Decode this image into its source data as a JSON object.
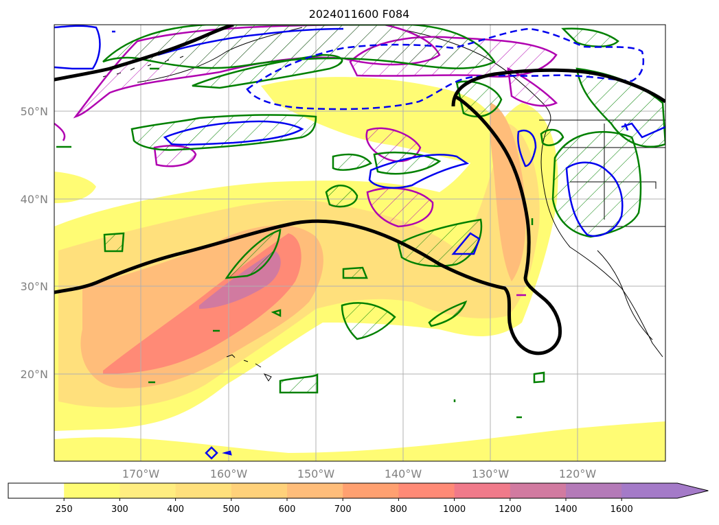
{
  "title": "2024011600 F084",
  "map": {
    "lat_labels": [
      "50°N",
      "40°N",
      "30°N",
      "20°N"
    ],
    "lon_labels": [
      "170°W",
      "160°W",
      "150°W",
      "140°W",
      "130°W",
      "120°W"
    ],
    "gridlines": true
  },
  "colorbar": {
    "ticks": [
      "250",
      "300",
      "400",
      "500",
      "600",
      "700",
      "800",
      "1000",
      "1200",
      "1400",
      "1600"
    ],
    "colors": [
      "#ffffff",
      "#fffc74",
      "#ffed80",
      "#ffe07c",
      "#ffd17a",
      "#ffbd7a",
      "#ffa070",
      "#ff8a76",
      "#f07a8a",
      "#d17aa0",
      "#b47ab8",
      "#a47ac8"
    ],
    "extend": "max"
  },
  "overlay_colors": {
    "thick_contour": "#000000",
    "green_hatched": "#008000",
    "magenta_hatched": "#b000b0",
    "blue_contour": "#0000ee"
  }
}
